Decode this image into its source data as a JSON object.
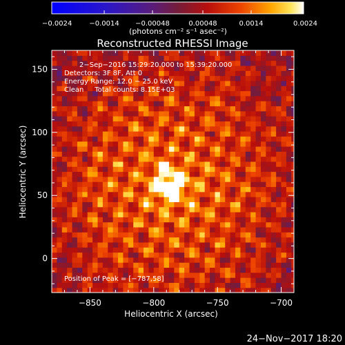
{
  "chart_data": {
    "type": "heatmap",
    "title": "Reconstructed RHESSI Image",
    "xlabel": "Heliocentric X (arcsec)",
    "ylabel": "Heliocentric Y (arcsec)",
    "xlim": [
      -880,
      -690
    ],
    "ylim": [
      -27,
      165
    ],
    "x_ticks": [
      -850,
      -800,
      -750,
      -700
    ],
    "x_tick_labels": [
      "−850",
      "−800",
      "−750",
      "−700"
    ],
    "y_ticks": [
      0,
      50,
      100,
      150
    ],
    "y_tick_labels": [
      "0",
      "50",
      "100",
      "150"
    ],
    "colorbar": {
      "min": -0.0024,
      "max": 0.0024,
      "tick_values": [
        -0.0024,
        -0.0014,
        -0.00048,
        0.00048,
        0.0014,
        0.0024
      ],
      "tick_labels": [
        "−0.0024",
        "−0.0014",
        "−0.00048",
        "0.00048",
        "0.0014",
        "0.0024"
      ],
      "unit_text": "(photons cm⁻² s⁻¹ asec⁻²)"
    },
    "annotations": [
      "2−Sep−2016 15:29:20.000 to 15:39:20.000",
      "Detectors: 3F 8F, Att 0",
      "Energy Range: 12.0 − 25.0 keV",
      "Clean     Total counts: 8.15E+03"
    ],
    "peak_text": "Position of Peak = [−787,58]",
    "peak": {
      "x": -787,
      "y": 58
    },
    "pattern_center": {
      "x": -787,
      "y": 58
    },
    "pattern_extent_arcsec": 80,
    "pixel_arcsec": 4
  },
  "footer": {
    "timestamp": "24−Nov−2017 18:20"
  }
}
